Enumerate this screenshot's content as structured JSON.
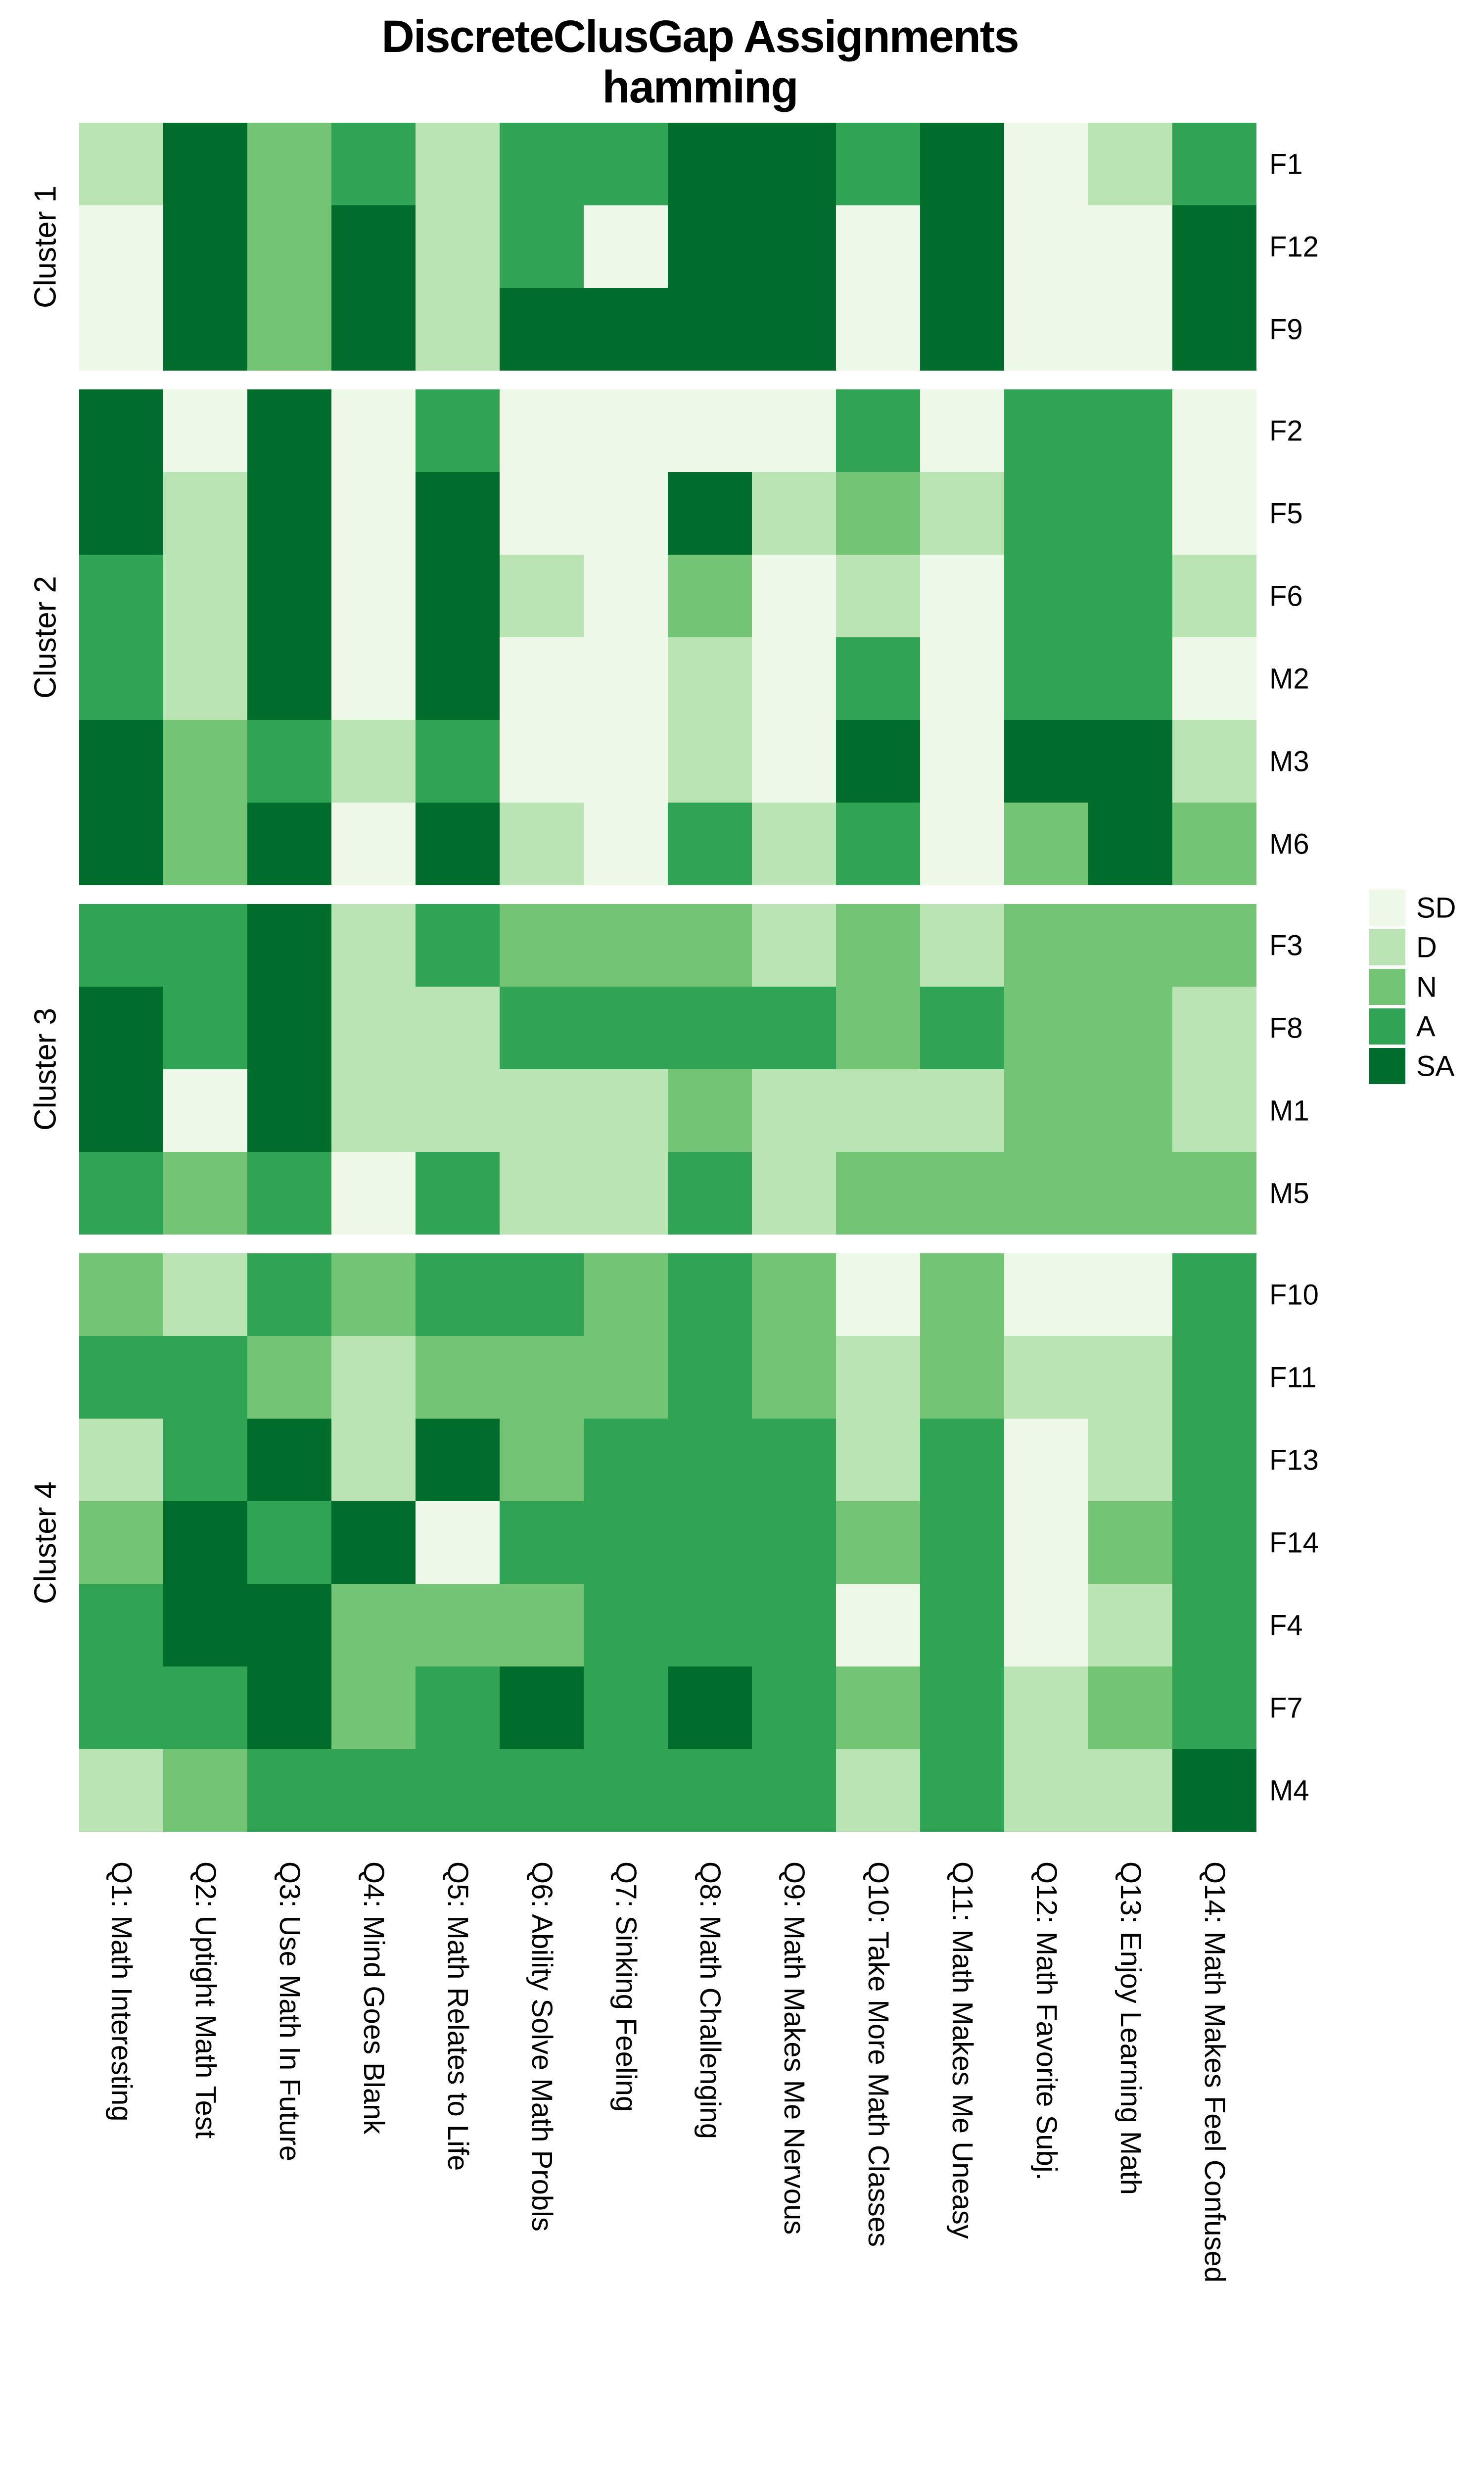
{
  "title": {
    "line1": "DiscreteClusGap Assignments",
    "line2": "hamming"
  },
  "legend": {
    "position": "right",
    "entries": [
      {
        "label": "SD",
        "color": "#EDF8E9"
      },
      {
        "label": "D",
        "color": "#BAE4B3"
      },
      {
        "label": "N",
        "color": "#74C476"
      },
      {
        "label": "A",
        "color": "#31A354"
      },
      {
        "label": "SA",
        "color": "#006D2C"
      }
    ]
  },
  "chart_data": {
    "type": "heatmap",
    "title": "DiscreteClusGap Assignments",
    "subtitle": "hamming",
    "grid": false,
    "legend_position": "right",
    "scale": {
      "SD": "#EDF8E9",
      "D": "#BAE4B3",
      "N": "#74C476",
      "A": "#31A354",
      "SA": "#006D2C"
    },
    "columns": [
      "Q1: Math Interesting",
      "Q2: Uptight Math Test",
      "Q3: Use Math In Future",
      "Q4: Mind Goes Blank",
      "Q5: Math Relates to Life",
      "Q6: Ability Solve Math Probls",
      "Q7: Sinking Feeling",
      "Q8: Math Challenging",
      "Q9: Math Makes Me Nervous",
      "Q10: Take More Math Classes",
      "Q11: Math Makes Me Uneasy",
      "Q12: Math Favorite Subj.",
      "Q13: Enjoy Learning Math",
      "Q14: Math Makes Feel Confused"
    ],
    "clusters": [
      {
        "name": "Cluster 1",
        "rows": [
          {
            "id": "F1",
            "values": [
              "D",
              "SA",
              "N",
              "A",
              "D",
              "A",
              "A",
              "SA",
              "SA",
              "A",
              "SA",
              "SD",
              "D",
              "A"
            ]
          },
          {
            "id": "F12",
            "values": [
              "SD",
              "SA",
              "N",
              "SA",
              "D",
              "A",
              "SD",
              "SA",
              "SA",
              "SD",
              "SA",
              "SD",
              "SD",
              "SA"
            ]
          },
          {
            "id": "F9",
            "values": [
              "SD",
              "SA",
              "N",
              "SA",
              "D",
              "SA",
              "SA",
              "SA",
              "SA",
              "SD",
              "SA",
              "SD",
              "SD",
              "SA"
            ]
          }
        ]
      },
      {
        "name": "Cluster 2",
        "rows": [
          {
            "id": "F2",
            "values": [
              "SA",
              "SD",
              "SA",
              "SD",
              "A",
              "SD",
              "SD",
              "SD",
              "SD",
              "A",
              "SD",
              "A",
              "A",
              "SD"
            ]
          },
          {
            "id": "F5",
            "values": [
              "SA",
              "D",
              "SA",
              "SD",
              "SA",
              "SD",
              "SD",
              "SA",
              "D",
              "N",
              "D",
              "A",
              "A",
              "SD"
            ]
          },
          {
            "id": "F6",
            "values": [
              "A",
              "D",
              "SA",
              "SD",
              "SA",
              "D",
              "SD",
              "N",
              "SD",
              "D",
              "SD",
              "A",
              "A",
              "D"
            ]
          },
          {
            "id": "M2",
            "values": [
              "A",
              "D",
              "SA",
              "SD",
              "SA",
              "SD",
              "SD",
              "D",
              "SD",
              "A",
              "SD",
              "A",
              "A",
              "SD"
            ]
          },
          {
            "id": "M3",
            "values": [
              "SA",
              "N",
              "A",
              "D",
              "A",
              "SD",
              "SD",
              "D",
              "SD",
              "SA",
              "SD",
              "SA",
              "SA",
              "D"
            ]
          },
          {
            "id": "M6",
            "values": [
              "SA",
              "N",
              "SA",
              "SD",
              "SA",
              "D",
              "SD",
              "A",
              "D",
              "A",
              "SD",
              "N",
              "SA",
              "N"
            ]
          }
        ]
      },
      {
        "name": "Cluster 3",
        "rows": [
          {
            "id": "F3",
            "values": [
              "A",
              "A",
              "SA",
              "D",
              "A",
              "N",
              "N",
              "N",
              "D",
              "N",
              "D",
              "N",
              "N",
              "N"
            ]
          },
          {
            "id": "F8",
            "values": [
              "SA",
              "A",
              "SA",
              "D",
              "D",
              "A",
              "A",
              "A",
              "A",
              "N",
              "A",
              "N",
              "N",
              "D"
            ]
          },
          {
            "id": "M1",
            "values": [
              "SA",
              "SD",
              "SA",
              "D",
              "D",
              "D",
              "D",
              "N",
              "D",
              "D",
              "D",
              "N",
              "N",
              "D"
            ]
          },
          {
            "id": "M5",
            "values": [
              "A",
              "N",
              "A",
              "SD",
              "A",
              "D",
              "D",
              "A",
              "D",
              "N",
              "N",
              "N",
              "N",
              "N"
            ]
          }
        ]
      },
      {
        "name": "Cluster 4",
        "rows": [
          {
            "id": "F10",
            "values": [
              "N",
              "D",
              "A",
              "N",
              "A",
              "A",
              "N",
              "A",
              "N",
              "SD",
              "N",
              "SD",
              "SD",
              "A"
            ]
          },
          {
            "id": "F11",
            "values": [
              "A",
              "A",
              "N",
              "D",
              "N",
              "N",
              "N",
              "A",
              "N",
              "D",
              "N",
              "D",
              "D",
              "A"
            ]
          },
          {
            "id": "F13",
            "values": [
              "D",
              "A",
              "SA",
              "D",
              "SA",
              "N",
              "A",
              "A",
              "A",
              "D",
              "A",
              "SD",
              "D",
              "A"
            ]
          },
          {
            "id": "F14",
            "values": [
              "N",
              "SA",
              "A",
              "SA",
              "SD",
              "A",
              "A",
              "A",
              "A",
              "N",
              "A",
              "SD",
              "N",
              "A"
            ]
          },
          {
            "id": "F4",
            "values": [
              "A",
              "SA",
              "SA",
              "N",
              "N",
              "N",
              "A",
              "A",
              "A",
              "SD",
              "A",
              "SD",
              "D",
              "A"
            ]
          },
          {
            "id": "F7",
            "values": [
              "A",
              "A",
              "SA",
              "N",
              "A",
              "SA",
              "A",
              "SA",
              "A",
              "N",
              "A",
              "D",
              "N",
              "A"
            ]
          },
          {
            "id": "M4",
            "values": [
              "D",
              "N",
              "A",
              "A",
              "A",
              "A",
              "A",
              "A",
              "A",
              "D",
              "A",
              "D",
              "D",
              "SA"
            ]
          }
        ]
      }
    ]
  }
}
